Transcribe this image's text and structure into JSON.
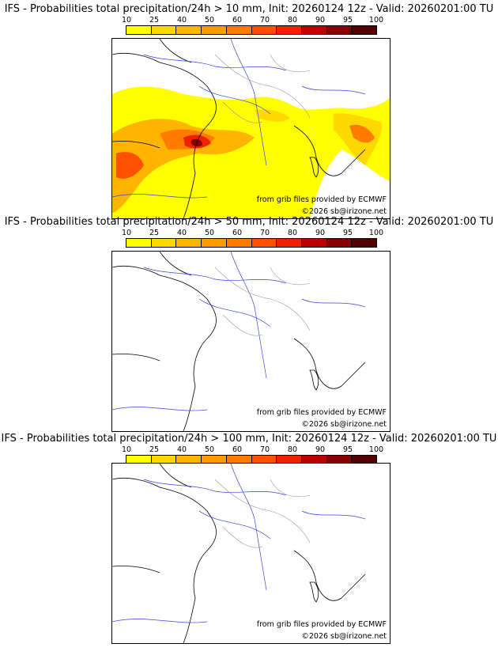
{
  "colorbar": {
    "labels": [
      "10",
      "25",
      "40",
      "50",
      "60",
      "70",
      "80",
      "90",
      "95",
      "100"
    ],
    "colors": [
      "#ffff00",
      "#ffd800",
      "#ffb400",
      "#ff9a00",
      "#ff7c00",
      "#ff5000",
      "#ee2200",
      "#bb0000",
      "#880000",
      "#550000"
    ]
  },
  "panels": [
    {
      "title": "IFS - Probabilities total precipitation/24h > 10 mm, Init: 20260124 12z - Valid: 20260201:00 TU",
      "credit": "from grib files provided by ECMWF",
      "copyright": "©2026 sb@irizone.net",
      "has_precip": true
    },
    {
      "title": "IFS - Probabilities total precipitation/24h > 50 mm, Init: 20260124 12z - Valid: 20260201:00 TU",
      "credit": "from grib files provided by ECMWF",
      "copyright": "©2026 sb@irizone.net",
      "has_precip": false
    },
    {
      "title": "IFS - Probabilities total precipitation/24h > 100 mm, Init: 20260124 12z - Valid: 20260201:00 TU",
      "credit": "from grib files provided by ECMWF",
      "copyright": "©2026 sb@irizone.net",
      "has_precip": false
    }
  ]
}
